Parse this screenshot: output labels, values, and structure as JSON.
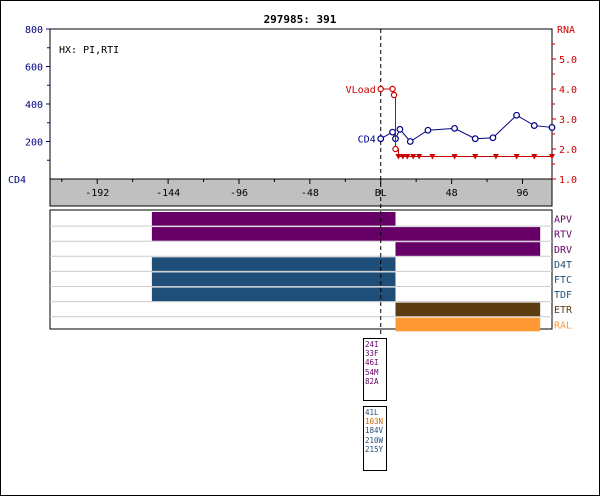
{
  "title": "297985: 391",
  "annotation": "HX: PI,RTI",
  "labels": {
    "left_axis": "CD4",
    "right_axis": "RNA",
    "vload_series": "VLoad",
    "cd4_series": "CD4",
    "baseline": "BL"
  },
  "colors": {
    "cd4": "#000080",
    "vload": "#cc0000",
    "purple": "#660066",
    "blue": "#1f4e79",
    "brown": "#5c3d11",
    "orange": "#ff9933"
  },
  "chart_data": {
    "type": "line",
    "title": "297985: 391",
    "x_ticks": [
      -192,
      -144,
      -96,
      -48,
      0,
      48,
      96
    ],
    "x_tick_labels": [
      "-192",
      "-144",
      "-96",
      "-48",
      "BL",
      "48",
      "96"
    ],
    "xlim": [
      -224,
      116
    ],
    "y_left": {
      "label": "CD4",
      "ticks": [
        800,
        600,
        400,
        200
      ],
      "ylim": [
        0,
        800
      ]
    },
    "y_right": {
      "label": "RNA",
      "ticks": [
        "5.0",
        "4.0",
        "3.0",
        "2.0",
        "1.0"
      ],
      "ylim": [
        1.0,
        6.0
      ]
    },
    "series": [
      {
        "name": "CD4",
        "axis": "left",
        "x": [
          0,
          8,
          10,
          13,
          20,
          32,
          50,
          64,
          76,
          92,
          104,
          116
        ],
        "y": [
          215,
          250,
          215,
          265,
          200,
          260,
          270,
          215,
          220,
          340,
          285,
          275
        ]
      },
      {
        "name": "VLoad",
        "axis": "right",
        "x": [
          0,
          8,
          9,
          10,
          12,
          15,
          18,
          22,
          26,
          35,
          50,
          64,
          78,
          92,
          104,
          116
        ],
        "y": [
          4.0,
          4.0,
          3.8,
          2.0,
          1.75,
          1.75,
          1.75,
          1.75,
          1.75,
          1.75,
          1.75,
          1.75,
          1.75,
          1.75,
          1.75,
          1.75
        ],
        "detected": [
          true,
          true,
          true,
          true,
          false,
          false,
          false,
          false,
          false,
          false,
          false,
          false,
          false,
          false,
          false,
          false
        ]
      }
    ],
    "drug_bars": [
      {
        "drug": "APV",
        "color": "#660066",
        "segments": [
          [
            -155,
            10
          ]
        ]
      },
      {
        "drug": "RTV",
        "color": "#660066",
        "segments": [
          [
            -155,
            108
          ]
        ]
      },
      {
        "drug": "DRV",
        "color": "#660066",
        "segments": [
          [
            10,
            108
          ]
        ]
      },
      {
        "drug": "D4T",
        "color": "#1f4e79",
        "segments": [
          [
            -155,
            10
          ]
        ]
      },
      {
        "drug": "FTC",
        "color": "#1f4e79",
        "segments": [
          [
            -155,
            10
          ]
        ]
      },
      {
        "drug": "TDF",
        "color": "#1f4e79",
        "segments": [
          [
            -155,
            10
          ]
        ]
      },
      {
        "drug": "ETR",
        "color": "#5c3d11",
        "segments": [
          [
            10,
            108
          ]
        ]
      },
      {
        "drug": "RAL",
        "color": "#ff9933",
        "segments": [
          [
            10,
            108
          ]
        ]
      }
    ],
    "mutations_pi": [
      {
        "text": "24I",
        "color": "#660066"
      },
      {
        "text": "33F",
        "color": "#660066"
      },
      {
        "text": "46I",
        "color": "#660066"
      },
      {
        "text": "54M",
        "color": "#660066"
      },
      {
        "text": "82A",
        "color": "#660066"
      }
    ],
    "mutations_rt": [
      {
        "text": "41L",
        "color": "#1f4e79"
      },
      {
        "text": "103N",
        "color": "#cc6600"
      },
      {
        "text": "184V",
        "color": "#1f4e79"
      },
      {
        "text": "210W",
        "color": "#1f4e79"
      },
      {
        "text": "215Y",
        "color": "#1f4e79"
      }
    ]
  }
}
